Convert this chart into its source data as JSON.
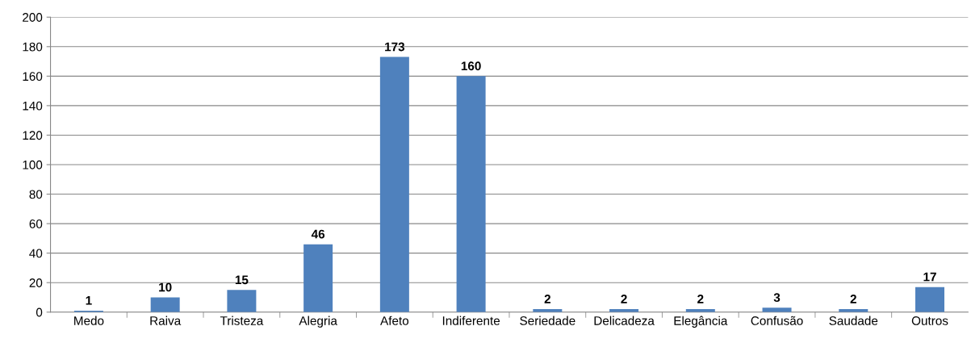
{
  "chart_data": {
    "type": "bar",
    "categories": [
      "Medo",
      "Raiva",
      "Tristeza",
      "Alegria",
      "Afeto",
      "Indiferente",
      "Seriedade",
      "Delicadeza",
      "Elegância",
      "Confusão",
      "Saudade",
      "Outros"
    ],
    "values": [
      1,
      10,
      15,
      46,
      173,
      160,
      2,
      2,
      2,
      3,
      2,
      17
    ],
    "color": "#4f81bd",
    "ylim": [
      0,
      200
    ],
    "yticks": [
      0,
      20,
      40,
      60,
      80,
      100,
      120,
      140,
      160,
      180,
      200
    ],
    "grid": "y",
    "data_labels": true
  }
}
